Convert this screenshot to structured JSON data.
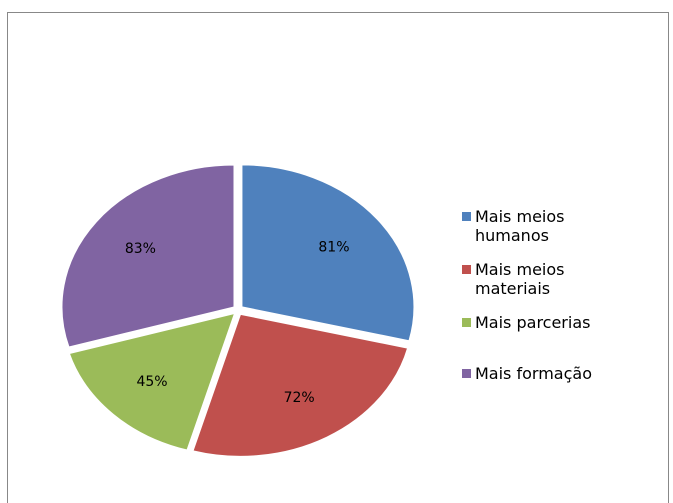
{
  "chart_data": {
    "type": "pie",
    "categories": [
      "Mais meios humanos",
      "Mais meios materiais",
      "Mais parcerias",
      "Mais formação"
    ],
    "values": [
      81,
      72,
      45,
      83
    ],
    "value_labels": [
      "81%",
      "72%",
      "45%",
      "83%"
    ],
    "colors": [
      "#4f81bd",
      "#c0504d",
      "#9bbb59",
      "#8064a2"
    ],
    "legend": "right"
  }
}
